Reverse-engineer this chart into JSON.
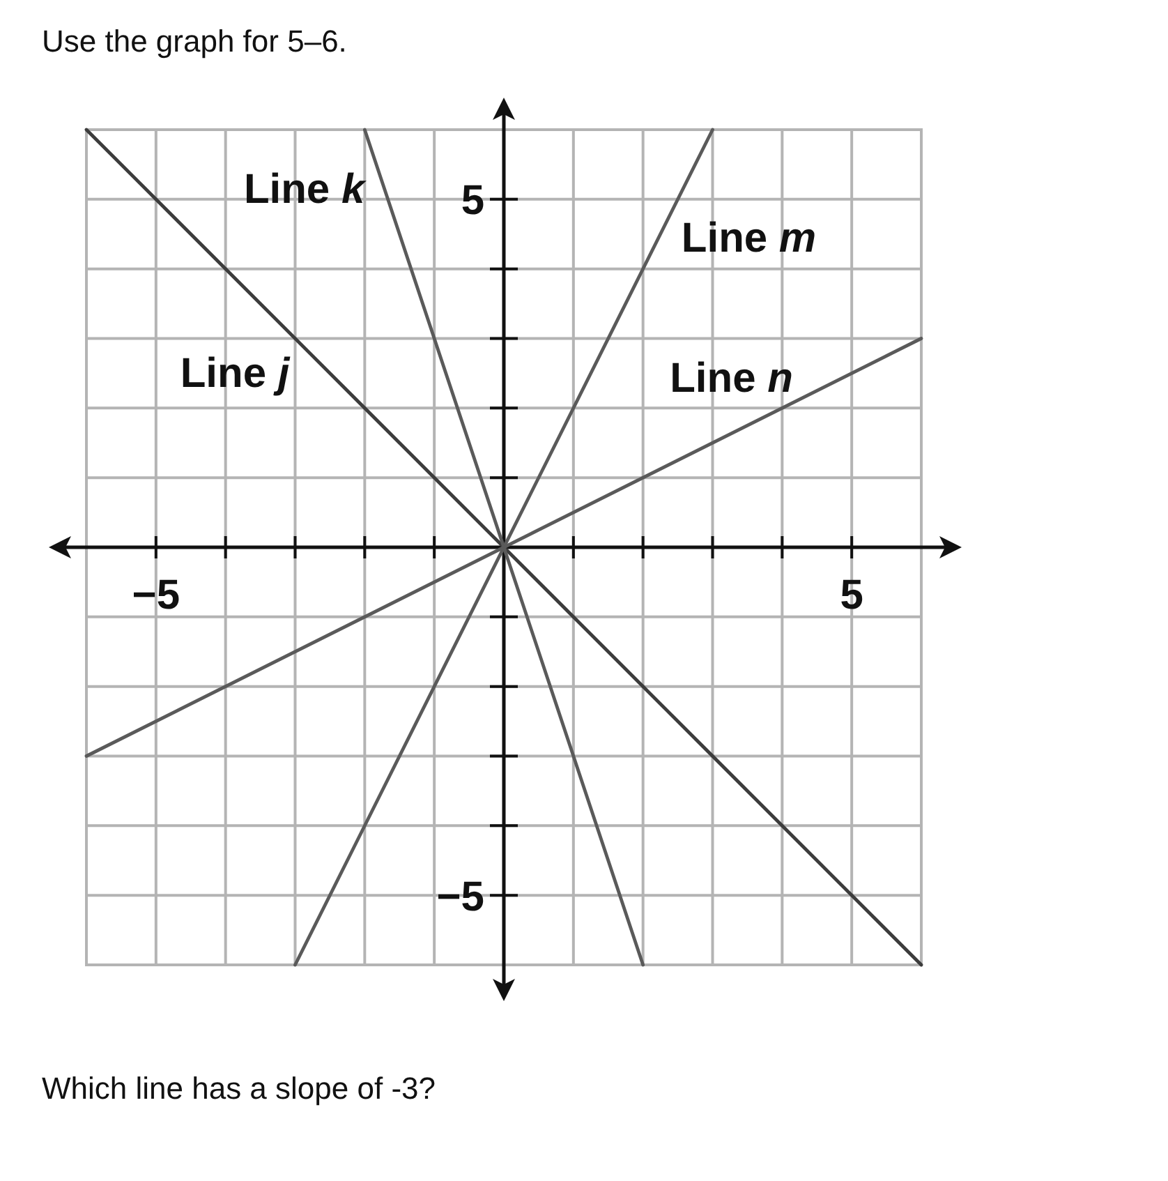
{
  "chart_data": {
    "type": "line",
    "title": "Use the graph for 5–6.",
    "annotations": [
      "Which line has a slope of -3?"
    ],
    "xlim": [
      -6,
      6
    ],
    "ylim": [
      -6,
      6
    ],
    "xticks": [
      {
        "value": -5,
        "label": "−5"
      },
      {
        "value": -4,
        "label": null
      },
      {
        "value": -3,
        "label": null
      },
      {
        "value": -2,
        "label": null
      },
      {
        "value": -1,
        "label": null
      },
      {
        "value": 1,
        "label": null
      },
      {
        "value": 2,
        "label": null
      },
      {
        "value": 3,
        "label": null
      },
      {
        "value": 4,
        "label": null
      },
      {
        "value": 5,
        "label": "5"
      }
    ],
    "yticks": [
      {
        "value": -5,
        "label": "−5"
      },
      {
        "value": -4,
        "label": null
      },
      {
        "value": -3,
        "label": null
      },
      {
        "value": -2,
        "label": null
      },
      {
        "value": -1,
        "label": null
      },
      {
        "value": 1,
        "label": null
      },
      {
        "value": 2,
        "label": null
      },
      {
        "value": 3,
        "label": null
      },
      {
        "value": 4,
        "label": null
      },
      {
        "value": 5,
        "label": "5"
      }
    ],
    "grid": true,
    "line_style": "solid",
    "series": [
      {
        "name": "Line j",
        "color": "#3c3c3c",
        "x": [
          -6,
          6
        ],
        "values": [
          6,
          -6
        ]
      },
      {
        "name": "Line k",
        "color": "#5a5a5a",
        "x": [
          -2,
          2
        ],
        "values": [
          6,
          -6
        ]
      },
      {
        "name": "Line m",
        "color": "#5a5a5a",
        "x": [
          -3,
          3
        ],
        "values": [
          -6,
          6
        ]
      },
      {
        "name": "Line n",
        "color": "#5a5a5a",
        "x": [
          -6,
          6
        ],
        "values": [
          -3,
          3
        ]
      }
    ]
  }
}
